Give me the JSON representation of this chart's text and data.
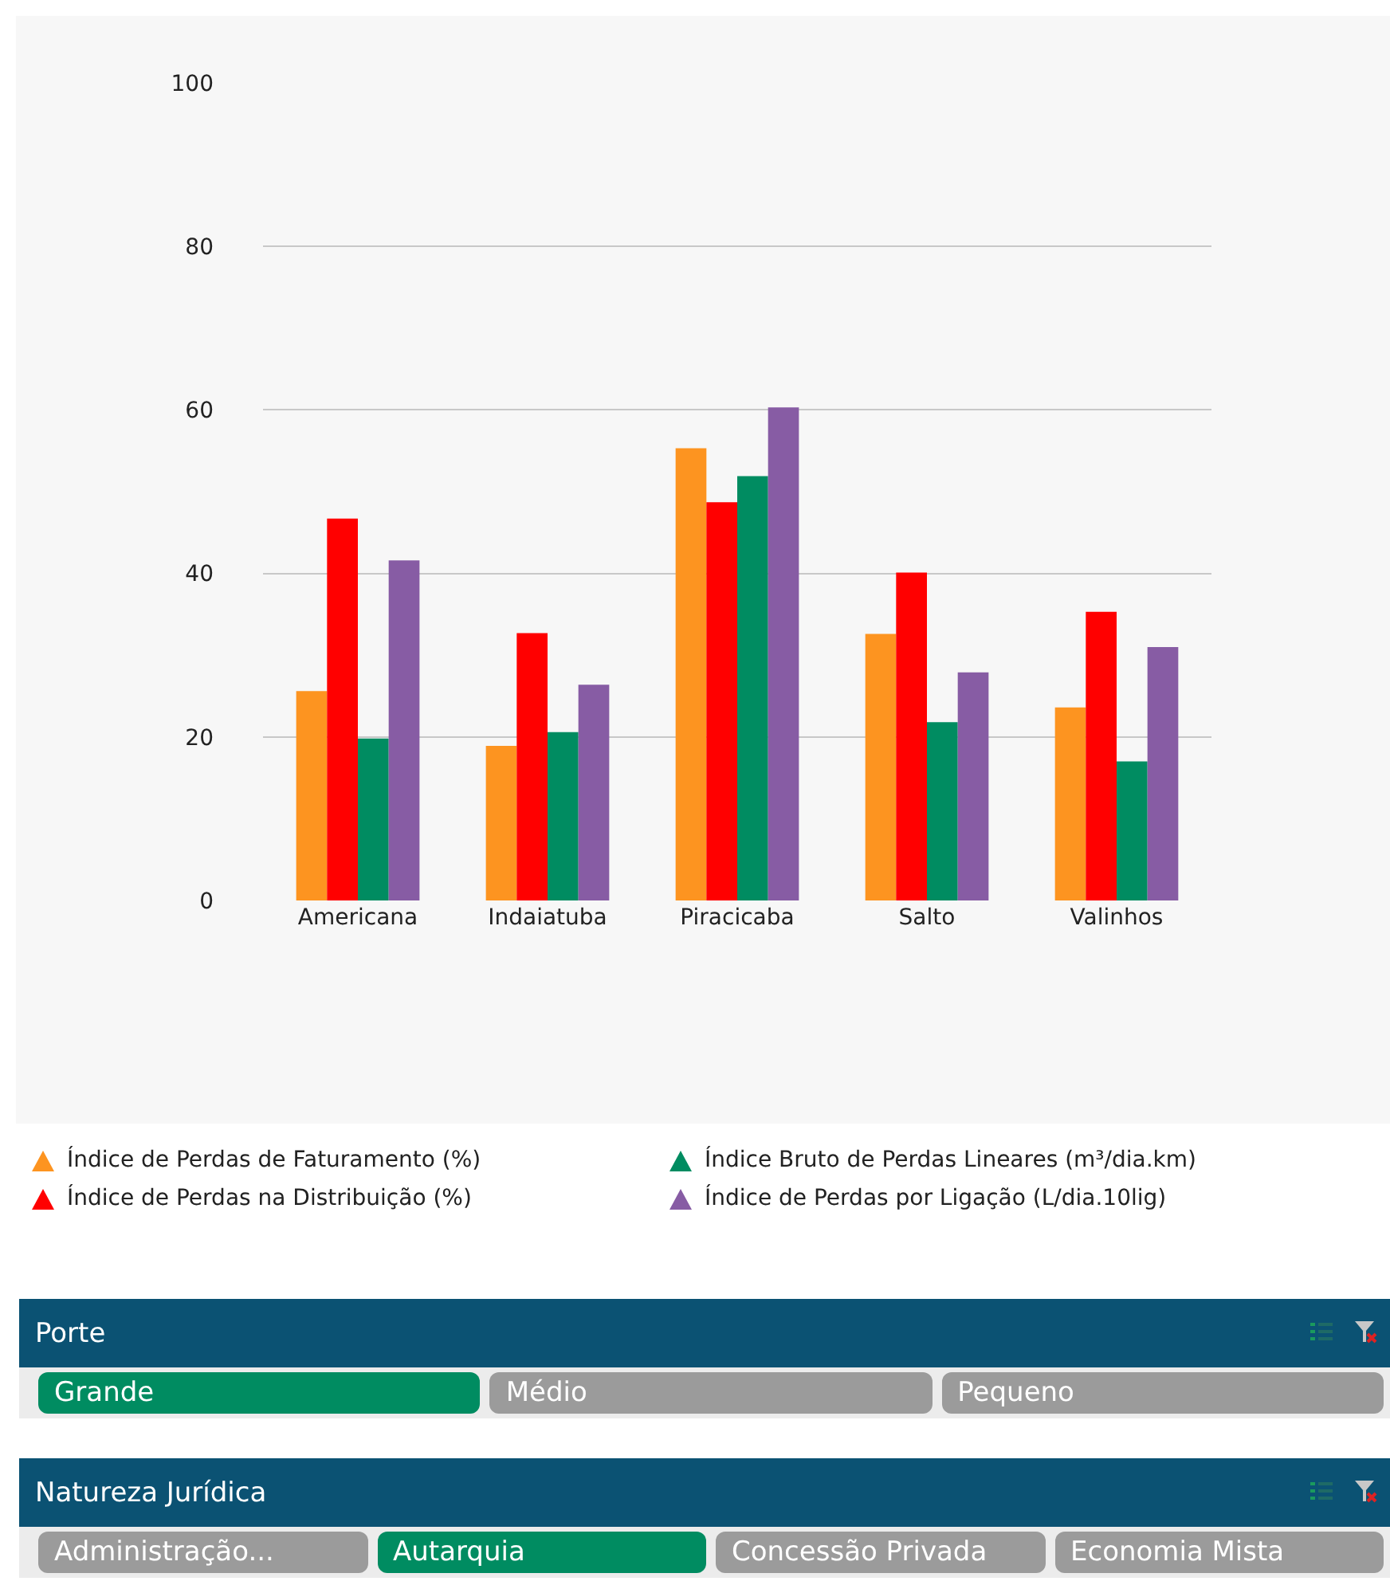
{
  "chart_data": [
    {
      "type": "bar",
      "categories": [
        "Americana",
        "Indaiatuba",
        "Piracicaba",
        "Salto",
        "Valinhos"
      ],
      "series": [
        {
          "name": "Índice de Perdas de Faturamento (%)",
          "color": "#fd9420",
          "values": [
            25.6,
            18.9,
            55.3,
            32.6,
            23.6
          ]
        },
        {
          "name": "Índice de Perdas na Distribuição (%)",
          "color": "#ff0000",
          "values": [
            46.7,
            32.7,
            48.7,
            40.1,
            35.3
          ]
        },
        {
          "name": "Índice Bruto de Perdas Lineares (m³/dia.km)",
          "color": "#008c61",
          "values": [
            19.8,
            20.6,
            51.9,
            21.8,
            17.0
          ]
        },
        {
          "name": "Índice de Perdas por Ligação (L/dia.10lig)",
          "color": "#875ca4",
          "values": [
            41.6,
            26.4,
            60.3,
            27.9,
            31.0
          ]
        }
      ],
      "ylim": [
        0,
        100
      ],
      "yticks": [
        0,
        20,
        40,
        60,
        80,
        100
      ],
      "grid": "y",
      "legend": "bottom"
    },
    {
      "type": "other",
      "title": "Porte",
      "categories": [
        "Grande",
        "Médio",
        "Pequeno"
      ],
      "colors": [
        "#008c61",
        "#9b9b9b",
        "#9b9b9b"
      ]
    },
    {
      "type": "other",
      "title": "Natureza Jurídica",
      "categories": [
        "Administração...",
        "Autarquia",
        "Concessão Privada",
        "Economia Mista"
      ],
      "colors": [
        "#9b9b9b",
        "#008c61",
        "#9b9b9b",
        "#9b9b9b"
      ]
    }
  ]
}
